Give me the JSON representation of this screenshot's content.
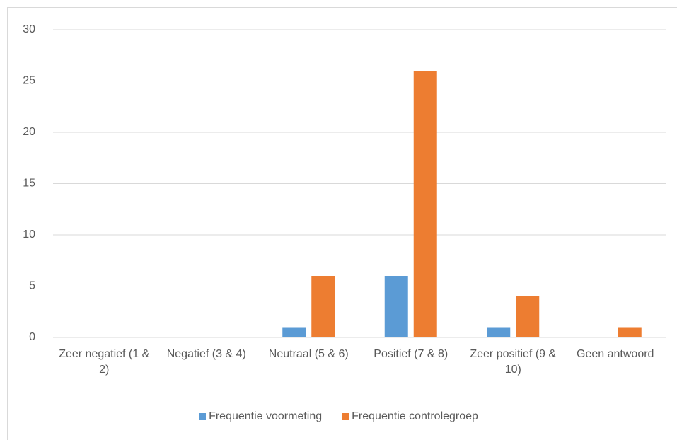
{
  "chart_data": {
    "type": "bar",
    "categories": [
      "Zeer negatief (1 & 2)",
      "Negatief (3 & 4)",
      "Neutraal (5 & 6)",
      "Positief (7 & 8)",
      "Zeer positief (9 & 10)",
      "Geen antwoord"
    ],
    "series": [
      {
        "name": "Frequentie voormeting",
        "color": "#5b9bd5",
        "values": [
          0,
          0,
          1,
          6,
          1,
          0
        ]
      },
      {
        "name": "Frequentie controlegroep",
        "color": "#ed7d31",
        "values": [
          0,
          0,
          6,
          26,
          4,
          1
        ]
      }
    ],
    "ylim": [
      0,
      30
    ],
    "yticks": [
      0,
      5,
      10,
      15,
      20,
      25,
      30
    ],
    "grid": true,
    "legend": "bottom"
  }
}
